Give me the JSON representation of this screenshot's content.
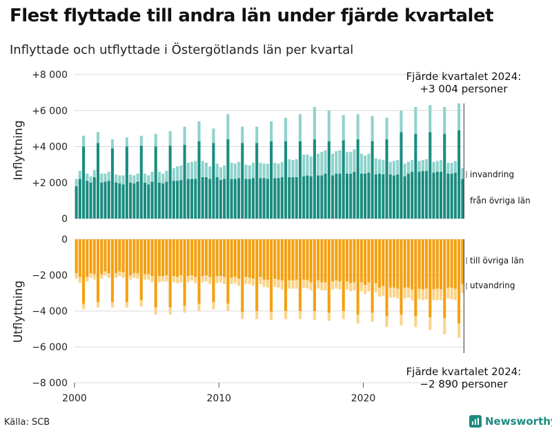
{
  "title": "Flest flyttade till andra län under fjärde kvartalet",
  "subtitle": "Inflyttade och utflyttade i Östergötlands län per kvartal",
  "source": "Källa: SCB",
  "brand": "Newsworthy",
  "colors": {
    "in_dark": "#1a8c80",
    "in_light": "#8fd3cc",
    "out_dark": "#f5a010",
    "out_light": "#fbd48a",
    "brand": "#1f8a80",
    "grid": "#d8d8d8"
  },
  "chart_data": {
    "type": "bar",
    "start_year": 2000,
    "panels": [
      {
        "name": "Inflyttning",
        "ylabel": "Inflyttning",
        "ylim": [
          0,
          8000
        ],
        "yticks": [
          0,
          2000,
          4000,
          6000,
          8000
        ],
        "ytick_labels": [
          "0",
          "+2 000",
          "+4 000",
          "+6 000",
          "+8 000"
        ],
        "series": [
          {
            "name": "från övriga län",
            "values": [
              1800,
              2200,
              4000,
              2100,
              2000,
              2300,
              4200,
              2000,
              2050,
              2100,
              3900,
              2000,
              1950,
              1900,
              4000,
              2000,
              1950,
              2050,
              4050,
              2000,
              1900,
              2050,
              4000,
              2000,
              1950,
              2050,
              4050,
              2100,
              2100,
              2150,
              4100,
              2200,
              2200,
              2200,
              4300,
              2300,
              2300,
              2200,
              4200,
              2300,
              2150,
              2200,
              4400,
              2200,
              2200,
              2250,
              4200,
              2200,
              2200,
              2250,
              4200,
              2250,
              2250,
              2200,
              4300,
              2250,
              2250,
              2300,
              4300,
              2300,
              2300,
              2300,
              4300,
              2350,
              2400,
              2350,
              4400,
              2400,
              2400,
              2500,
              4300,
              2400,
              2500,
              2500,
              4350,
              2500,
              2500,
              2600,
              4400,
              2500,
              2500,
              2550,
              4300,
              2450,
              2500,
              2450,
              4400,
              2450,
              2400,
              2450,
              4800,
              2350,
              2500,
              2600,
              4700,
              2600,
              2650,
              2650,
              4800,
              2550,
              2600,
              2600,
              4700,
              2500,
              2500,
              2550,
              4900,
              2200
            ],
            "labels": []
          },
          {
            "name": "invandring",
            "values": [
              400,
              450,
              600,
              400,
              350,
              400,
              600,
              500,
              450,
              500,
              500,
              450,
              450,
              500,
              500,
              450,
              450,
              450,
              550,
              500,
              500,
              550,
              700,
              600,
              550,
              600,
              800,
              700,
              800,
              800,
              1000,
              900,
              950,
              1000,
              1100,
              900,
              800,
              700,
              800,
              750,
              700,
              750,
              1400,
              900,
              850,
              900,
              900,
              800,
              750,
              850,
              900,
              850,
              800,
              850,
              1100,
              850,
              800,
              850,
              1300,
              1000,
              950,
              1000,
              1500,
              1200,
              1150,
              1100,
              1800,
              1200,
              1300,
              1300,
              1700,
              1200,
              1250,
              1300,
              1400,
              1200,
              1200,
              1250,
              1400,
              1100,
              1000,
              1050,
              1400,
              900,
              800,
              800,
              1200,
              700,
              800,
              800,
              1200,
              700,
              650,
              650,
              1500,
              600,
              600,
              650,
              1500,
              600,
              600,
              650,
              1500,
              600,
              600,
              650,
              1500,
              600
            ]
          }
        ],
        "series_labels": [
          "från övriga län",
          "invandring"
        ],
        "annotation": {
          "line1": "Fjärde kvartalet 2024:",
          "line2": "+3 004 personer"
        }
      },
      {
        "name": "Utflyttning",
        "ylabel": "Utflyttning",
        "ylim": [
          -8000,
          0
        ],
        "yticks": [
          0,
          -2000,
          -4000,
          -6000,
          -8000
        ],
        "ytick_labels": [
          "0",
          "−2 000",
          "−4 000",
          "−6 000",
          "−8 000"
        ],
        "series": [
          {
            "name": "till övriga län",
            "values": [
              -1900,
              -2100,
              -3600,
              -2100,
              -1900,
              -1950,
              -3500,
              -1950,
              -1800,
              -1900,
              -3500,
              -1900,
              -1800,
              -1850,
              -3500,
              -2000,
              -1900,
              -1900,
              -3400,
              -1950,
              -1950,
              -2050,
              -3800,
              -2050,
              -2050,
              -2000,
              -3800,
              -2050,
              -2100,
              -2000,
              -3700,
              -2050,
              -2000,
              -2100,
              -3600,
              -2050,
              -2000,
              -2100,
              -3500,
              -2050,
              -2050,
              -2100,
              -3600,
              -2150,
              -2100,
              -2200,
              -4050,
              -2100,
              -2150,
              -2200,
              -4000,
              -2100,
              -2250,
              -2250,
              -4050,
              -2200,
              -2250,
              -2300,
              -4000,
              -2300,
              -2300,
              -2250,
              -4000,
              -2250,
              -2300,
              -2400,
              -4000,
              -2300,
              -2400,
              -2400,
              -4100,
              -2350,
              -2300,
              -2350,
              -4000,
              -2350,
              -2450,
              -2400,
              -4200,
              -2400,
              -2550,
              -2400,
              -4100,
              -2450,
              -2700,
              -2600,
              -4300,
              -2700,
              -2700,
              -2750,
              -4200,
              -2700,
              -2700,
              -2800,
              -4300,
              -2750,
              -2800,
              -2750,
              -4350,
              -2800,
              -2750,
              -2800,
              -4400,
              -2700,
              -2700,
              -2750,
              -4700,
              -2500
            ],
            "labels": []
          },
          {
            "name": "utvandring",
            "values": [
              -300,
              -350,
              -300,
              -250,
              -250,
              -300,
              -300,
              -250,
              -200,
              -250,
              -300,
              -250,
              -250,
              -300,
              -300,
              -250,
              -250,
              -300,
              -350,
              -300,
              -300,
              -350,
              -400,
              -350,
              -300,
              -350,
              -400,
              -350,
              -350,
              -400,
              -400,
              -350,
              -300,
              -350,
              -400,
              -350,
              -350,
              -400,
              -400,
              -400,
              -350,
              -400,
              -400,
              -350,
              -350,
              -400,
              -400,
              -400,
              -350,
              -400,
              -450,
              -400,
              -400,
              -450,
              -450,
              -450,
              -450,
              -500,
              -450,
              -450,
              -450,
              -500,
              -450,
              -450,
              -450,
              -450,
              -500,
              -450,
              -450,
              -450,
              -450,
              -450,
              -450,
              -450,
              -450,
              -450,
              -450,
              -450,
              -500,
              -500,
              -500,
              -500,
              -500,
              -500,
              -500,
              -550,
              -600,
              -550,
              -550,
              -550,
              -600,
              -600,
              -550,
              -600,
              -600,
              -600,
              -600,
              -600,
              -700,
              -600,
              -650,
              -600,
              -900,
              -600,
              -650,
              -650,
              -800,
              -500
            ]
          }
        ],
        "series_labels": [
          "till övriga län",
          "utvandring"
        ],
        "annotation": {
          "line1": "Fjärde kvartalet 2024:",
          "line2": "−2 890 personer"
        }
      }
    ],
    "xticks": [
      "2000",
      "2010",
      "2020"
    ]
  }
}
